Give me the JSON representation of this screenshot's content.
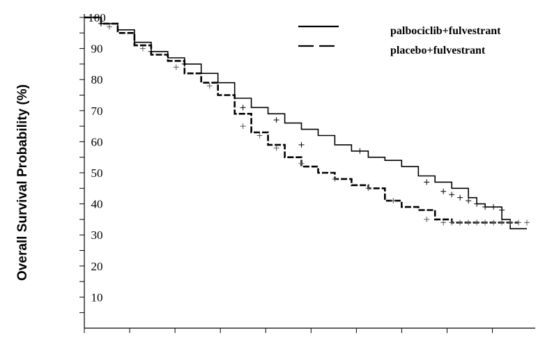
{
  "chart_data": {
    "type": "line",
    "title": "",
    "xlabel": "",
    "ylabel": "Overall Survival Probability (%)",
    "ylim": [
      0,
      100
    ],
    "xlim": [
      0,
      54
    ],
    "yticks": [
      10,
      20,
      30,
      40,
      50,
      60,
      70,
      80,
      90,
      100
    ],
    "x_tick_count": 10,
    "grid": false,
    "legend": "top-right",
    "series": [
      {
        "name": "palbociclib+fulvestrant",
        "style": "solid",
        "color": "#000000",
        "x": [
          0,
          2,
          4,
          6,
          8,
          10,
          12,
          14,
          16,
          18,
          20,
          22,
          24,
          26,
          28,
          30,
          32,
          34,
          36,
          38,
          40,
          42,
          44,
          46,
          47,
          48,
          49,
          50,
          51,
          52,
          53
        ],
        "y": [
          100,
          98,
          96,
          92,
          89,
          87,
          85,
          82,
          79,
          74,
          71,
          69,
          66,
          64,
          62,
          59,
          57,
          55,
          54,
          52,
          49,
          47,
          45,
          42,
          40,
          39,
          39,
          35,
          32,
          32,
          32
        ],
        "censors": [
          [
            2,
            98
          ],
          [
            8,
            89
          ],
          [
            12,
            85
          ],
          [
            19,
            71
          ],
          [
            23,
            67
          ],
          [
            26,
            59
          ],
          [
            33,
            57
          ],
          [
            41,
            47
          ],
          [
            43,
            44
          ],
          [
            44,
            43
          ],
          [
            45,
            42
          ],
          [
            46,
            41
          ],
          [
            47,
            40
          ],
          [
            48,
            39
          ],
          [
            49,
            39
          ],
          [
            50,
            38
          ]
        ]
      },
      {
        "name": "placebo+fulvestrant",
        "style": "dashed",
        "color": "#000000",
        "x": [
          0,
          2,
          4,
          6,
          8,
          10,
          12,
          14,
          16,
          18,
          20,
          22,
          24,
          26,
          28,
          30,
          32,
          34,
          36,
          38,
          40,
          42,
          44,
          46,
          48,
          50,
          52
        ],
        "y": [
          100,
          98,
          95,
          91,
          88,
          86,
          82,
          79,
          75,
          69,
          63,
          59,
          55,
          52,
          50,
          48,
          46,
          45,
          41,
          39,
          38,
          35,
          34,
          34,
          34,
          34,
          34
        ],
        "censors": [
          [
            3,
            97
          ],
          [
            7,
            90
          ],
          [
            11,
            84
          ],
          [
            15,
            78
          ],
          [
            19,
            65
          ],
          [
            21,
            62
          ],
          [
            23,
            58
          ],
          [
            26,
            53
          ],
          [
            30,
            48
          ],
          [
            34,
            45
          ],
          [
            37,
            41
          ],
          [
            41,
            35
          ],
          [
            43,
            34
          ],
          [
            44,
            34
          ],
          [
            45,
            34
          ],
          [
            46,
            34
          ],
          [
            47,
            34
          ],
          [
            48,
            34
          ],
          [
            49,
            34
          ],
          [
            50,
            34
          ],
          [
            51,
            34
          ],
          [
            52,
            34
          ],
          [
            53,
            34
          ]
        ]
      }
    ]
  }
}
